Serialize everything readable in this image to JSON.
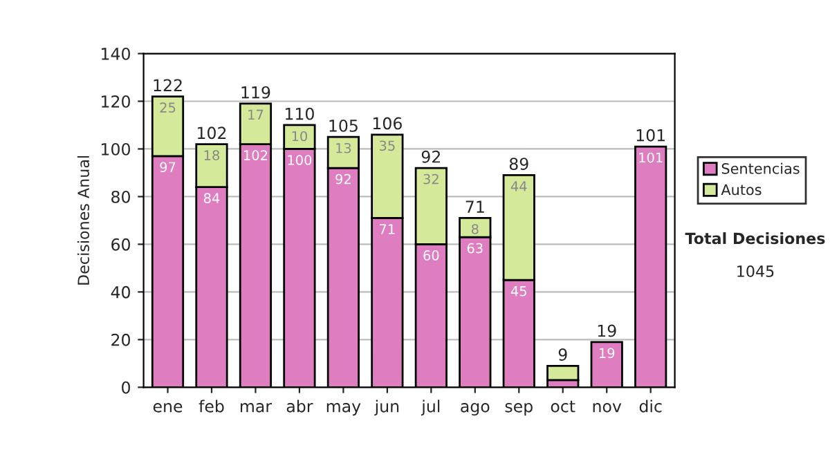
{
  "chart_data": {
    "type": "bar",
    "stacked": true,
    "ylabel": "Decisiones Anual",
    "categories": [
      "ene",
      "feb",
      "mar",
      "abr",
      "may",
      "jun",
      "jul",
      "ago",
      "sep",
      "oct",
      "nov",
      "dic"
    ],
    "series": [
      {
        "name": "Sentencias",
        "color": "#de7dc0",
        "values": [
          97,
          84,
          102,
          100,
          92,
          71,
          60,
          63,
          45,
          3,
          19,
          101
        ],
        "value_labels": [
          "97",
          "84",
          "102",
          "100",
          "92",
          "71",
          "60",
          "63",
          "45",
          null,
          "19",
          "101"
        ]
      },
      {
        "name": "Autos",
        "color": "#d4e99a",
        "values": [
          25,
          18,
          17,
          10,
          13,
          35,
          32,
          8,
          44,
          6,
          null,
          null
        ],
        "value_labels": [
          "25",
          "18",
          "17",
          "10",
          "13",
          "35",
          "32",
          "8",
          "44",
          null,
          null,
          null
        ]
      }
    ],
    "totals": [
      "122",
      "102",
      "119",
      "110",
      "105",
      "106",
      "92",
      "71",
      "89",
      "9",
      "19",
      "101"
    ],
    "ylim": [
      0,
      140
    ],
    "yticks": [
      0,
      20,
      40,
      60,
      80,
      100,
      120,
      140
    ],
    "grid": "y",
    "legend": "right",
    "annotations": [
      "Total Decisiones",
      "1045"
    ]
  }
}
